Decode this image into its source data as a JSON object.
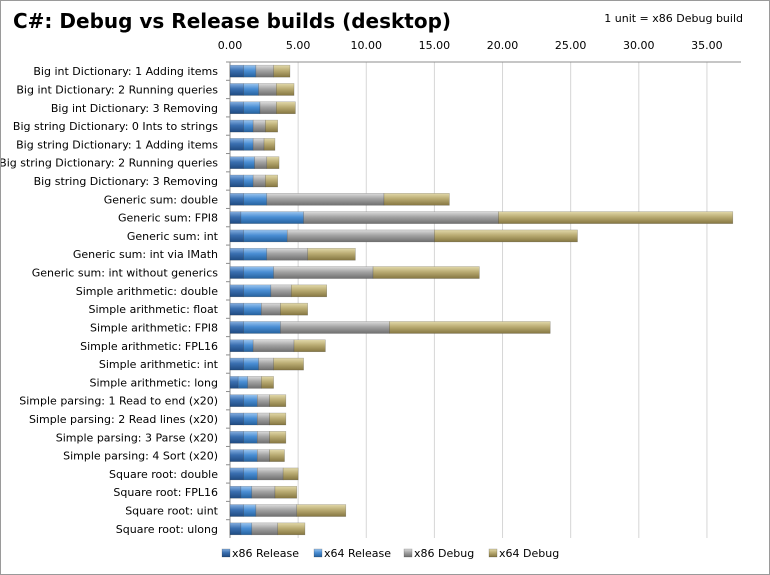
{
  "chart_data": {
    "type": "bar",
    "orientation": "horizontal",
    "stacked": true,
    "title": "C#: Debug vs Release builds (desktop)",
    "subtitle": "1 unit = x86 Debug build",
    "xlim": [
      0,
      37.5
    ],
    "xticks": [
      "0.00",
      "5.00",
      "10.00",
      "15.00",
      "20.00",
      "25.00",
      "30.00",
      "35.00"
    ],
    "grid": true,
    "legend_position": "bottom",
    "categories": [
      "Big int Dictionary: 1 Adding items",
      "Big int Dictionary: 2 Running queries",
      "Big int Dictionary: 3 Removing",
      "Big string Dictionary: 0 Ints to strings",
      "Big string Dictionary: 1 Adding items",
      "Big string Dictionary: 2 Running queries",
      "Big string Dictionary: 3 Removing",
      "Generic sum: double",
      "Generic sum: FPI8",
      "Generic sum: int",
      "Generic sum: int via IMath",
      "Generic sum: int without generics",
      "Simple arithmetic: double",
      "Simple arithmetic: float",
      "Simple arithmetic: FPI8",
      "Simple arithmetic: FPL16",
      "Simple arithmetic: int",
      "Simple arithmetic: long",
      "Simple parsing: 1 Read to end (x20)",
      "Simple parsing: 2 Read lines (x20)",
      "Simple parsing: 3 Parse (x20)",
      "Simple parsing: 4 Sort (x20)",
      "Square root: double",
      "Square root: FPL16",
      "Square root: uint",
      "Square root: ulong"
    ],
    "series": [
      {
        "name": "x86 Release",
        "color": "#3a6fb0",
        "values": [
          1.0,
          1.0,
          1.0,
          1.0,
          1.0,
          1.0,
          1.0,
          1.0,
          0.8,
          1.0,
          1.0,
          1.0,
          1.0,
          1.0,
          1.0,
          1.0,
          1.0,
          0.6,
          1.0,
          1.0,
          1.0,
          1.0,
          1.0,
          0.8,
          1.0,
          0.8
        ]
      },
      {
        "name": "x64 Release",
        "color": "#4a8ed4",
        "values": [
          0.9,
          1.1,
          1.2,
          0.7,
          0.7,
          0.8,
          0.7,
          1.7,
          4.6,
          3.2,
          1.7,
          2.2,
          2.0,
          1.3,
          2.7,
          0.7,
          1.1,
          0.7,
          1.0,
          1.0,
          1.0,
          1.0,
          1.0,
          0.8,
          0.9,
          0.8
        ]
      },
      {
        "name": "x86 Debug",
        "color": "#a3a3a3",
        "values": [
          1.3,
          1.3,
          1.2,
          0.9,
          0.8,
          0.9,
          0.9,
          8.6,
          14.3,
          10.8,
          3.0,
          7.3,
          1.5,
          1.4,
          8.0,
          3.0,
          1.1,
          1.0,
          0.9,
          0.9,
          0.9,
          0.9,
          1.9,
          1.7,
          3.0,
          1.9
        ]
      },
      {
        "name": "x64 Debug",
        "color": "#b9ab72",
        "values": [
          1.2,
          1.3,
          1.4,
          0.9,
          0.8,
          0.9,
          0.9,
          4.8,
          17.2,
          10.5,
          3.5,
          7.8,
          2.6,
          2.0,
          11.8,
          2.3,
          2.2,
          0.9,
          1.2,
          1.2,
          1.2,
          1.1,
          1.1,
          1.6,
          3.6,
          2.0
        ]
      }
    ]
  }
}
